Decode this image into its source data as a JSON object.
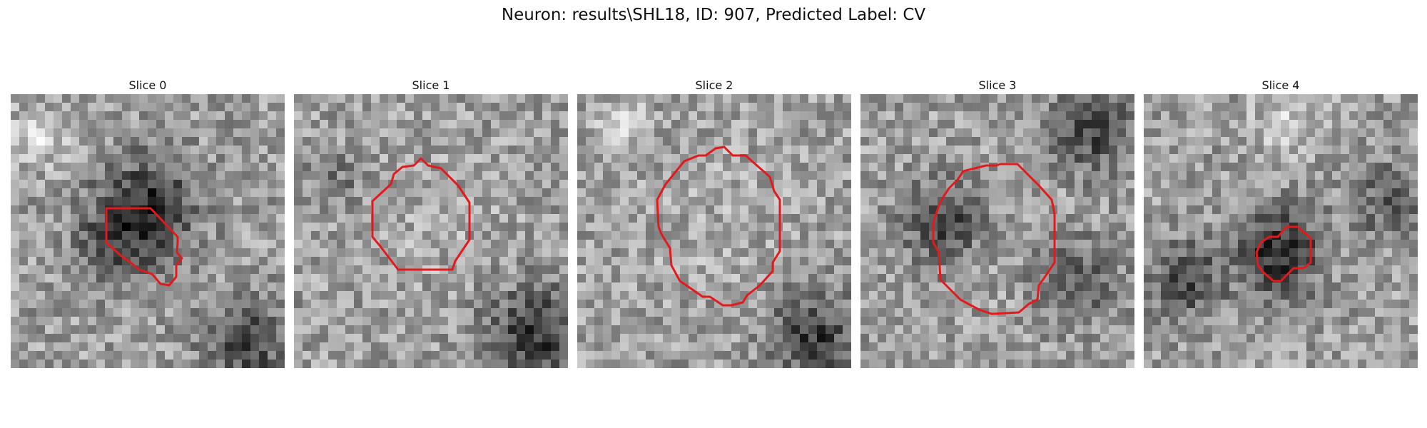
{
  "figure": {
    "title": "Neuron: results\\SHL18, ID: 907, Predicted Label: CV"
  },
  "panels": [
    {
      "title": "Slice 0",
      "contour_color": "#e31a1c"
    },
    {
      "title": "Slice 1",
      "contour_color": "#e31a1c"
    },
    {
      "title": "Slice 2",
      "contour_color": "#e31a1c"
    },
    {
      "title": "Slice 3",
      "contour_color": "#e31a1c"
    },
    {
      "title": "Slice 4",
      "contour_color": "#e31a1c"
    }
  ]
}
